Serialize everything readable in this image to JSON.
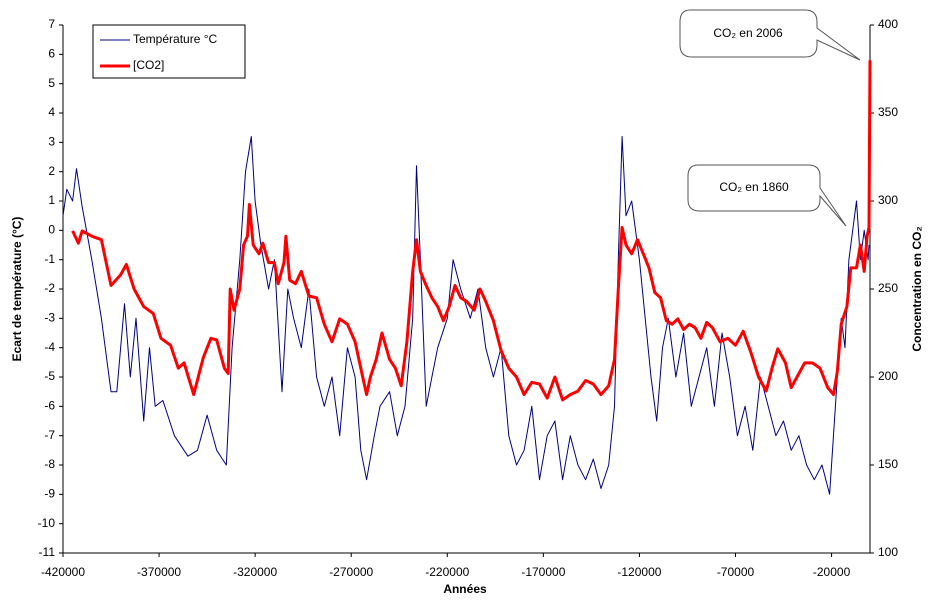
{
  "chart_data": {
    "type": "line",
    "xlabel": "Années",
    "ylabel": "Ecart de température (°C)",
    "y2label": "Concentration en CO₂",
    "xlim": [
      -420000,
      0
    ],
    "xticks": [
      -420000,
      -370000,
      -320000,
      -270000,
      -220000,
      -170000,
      -120000,
      -70000,
      -20000
    ],
    "ylim": [
      -11,
      7
    ],
    "yticks": [
      -11,
      -10,
      -9,
      -8,
      -7,
      -6,
      -5,
      -4,
      -3,
      -2,
      -1,
      0,
      1,
      2,
      3,
      4,
      5,
      6,
      7
    ],
    "y2lim": [
      100,
      400
    ],
    "y2ticks": [
      100,
      150,
      200,
      250,
      300,
      350,
      400
    ],
    "legend": "top-left",
    "annotations": [
      "CO₂ en 2006",
      "CO₂ en 1860"
    ],
    "series": [
      {
        "name": "Température °C",
        "color": "#000080",
        "x": [
          -420000,
          -418000,
          -415000,
          -413000,
          -410000,
          -405000,
          -400000,
          -395000,
          -392000,
          -388000,
          -385000,
          -382000,
          -378000,
          -375000,
          -372000,
          -368000,
          -362000,
          -355000,
          -350000,
          -345000,
          -340000,
          -335000,
          -332000,
          -328000,
          -325000,
          -322000,
          -320000,
          -317000,
          -313000,
          -310000,
          -306000,
          -303000,
          -300000,
          -296000,
          -292000,
          -288000,
          -284000,
          -280000,
          -276000,
          -272000,
          -268000,
          -265000,
          -262000,
          -258000,
          -255000,
          -250000,
          -246000,
          -242000,
          -238000,
          -236000,
          -234000,
          -231000,
          -228000,
          -225000,
          -220000,
          -217000,
          -213000,
          -208000,
          -204000,
          -200000,
          -196000,
          -192000,
          -188000,
          -184000,
          -180000,
          -176000,
          -172000,
          -168000,
          -164000,
          -160000,
          -156000,
          -152000,
          -148000,
          -144000,
          -140000,
          -136000,
          -133000,
          -131000,
          -129000,
          -127000,
          -124000,
          -120000,
          -117000,
          -114000,
          -111000,
          -108000,
          -105000,
          -101000,
          -97000,
          -93000,
          -89000,
          -85000,
          -81000,
          -77000,
          -73000,
          -69000,
          -65000,
          -61000,
          -57000,
          -53000,
          -49000,
          -45000,
          -41000,
          -37000,
          -33000,
          -29000,
          -25000,
          -21000,
          -18000,
          -15000,
          -13000,
          -11000,
          -9000,
          -7000,
          -5000,
          -3000,
          -1000,
          -500
        ],
        "values": [
          0.5,
          1.4,
          1.0,
          2.1,
          0.8,
          -1,
          -3,
          -5.5,
          -5.5,
          -2.5,
          -5,
          -3,
          -6.5,
          -4,
          -6,
          -5.8,
          -7,
          -7.7,
          -7.5,
          -6.3,
          -7.5,
          -8,
          -4,
          -1,
          2,
          3.2,
          1,
          -0.5,
          -2,
          -1,
          -5.5,
          -2,
          -3,
          -4,
          -2,
          -5,
          -6,
          -5,
          -7,
          -4,
          -5,
          -7.5,
          -8.5,
          -7,
          -6,
          -5.5,
          -7,
          -6,
          -3,
          2.2,
          -1,
          -6,
          -5,
          -4,
          -3,
          -1,
          -2,
          -3,
          -2,
          -4,
          -5,
          -4,
          -7,
          -8,
          -7.5,
          -6,
          -8.5,
          -7,
          -6.5,
          -8.5,
          -7,
          -8,
          -8.5,
          -7.8,
          -8.8,
          -8,
          -6,
          -1,
          3.2,
          0.5,
          1,
          -1,
          -3,
          -5,
          -6.5,
          -4,
          -3,
          -5,
          -3.5,
          -6,
          -5,
          -4,
          -6,
          -3.5,
          -5,
          -7,
          -6,
          -7.5,
          -5,
          -6,
          -7,
          -6.5,
          -7.5,
          -7,
          -8,
          -8.5,
          -8,
          -9,
          -6,
          -3,
          -4,
          -1,
          0,
          1,
          -1,
          0,
          -1,
          -0.5
        ]
      },
      {
        "name": "[CO2]",
        "color": "#ff0000",
        "axis": "y2",
        "x": [
          -415000,
          -412000,
          -410000,
          -405000,
          -400000,
          -395000,
          -390000,
          -387000,
          -383000,
          -378000,
          -373000,
          -369000,
          -364000,
          -360000,
          -357000,
          -352000,
          -347000,
          -343000,
          -340000,
          -336000,
          -334000,
          -333000,
          -331000,
          -328000,
          -326000,
          -324000,
          -323000,
          -321000,
          -318000,
          -316000,
          -313000,
          -310000,
          -308000,
          -305000,
          -304000,
          -302000,
          -299000,
          -296000,
          -292000,
          -288000,
          -284000,
          -280000,
          -276000,
          -272000,
          -268000,
          -264000,
          -262000,
          -260000,
          -257000,
          -254000,
          -250000,
          -247000,
          -244000,
          -241000,
          -238000,
          -236000,
          -234000,
          -231000,
          -228000,
          -225000,
          -222000,
          -219000,
          -216000,
          -213000,
          -210000,
          -206000,
          -203000,
          -200000,
          -196000,
          -192000,
          -188000,
          -184000,
          -180000,
          -176000,
          -172000,
          -168000,
          -164000,
          -160000,
          -156000,
          -152000,
          -148000,
          -144000,
          -140000,
          -136000,
          -133000,
          -131000,
          -129000,
          -127000,
          -124000,
          -121000,
          -118000,
          -115000,
          -112000,
          -109000,
          -106000,
          -103000,
          -100000,
          -97000,
          -94000,
          -91000,
          -88000,
          -85000,
          -82000,
          -78000,
          -74000,
          -70000,
          -66000,
          -62000,
          -58000,
          -54000,
          -51000,
          -48000,
          -44000,
          -41000,
          -38000,
          -34000,
          -30000,
          -26000,
          -22000,
          -19000,
          -17000,
          -15000,
          -12000,
          -10000,
          -7000,
          -5000,
          -3000,
          -1500,
          -500,
          0
        ],
        "values": [
          283,
          276,
          283,
          280,
          278,
          252,
          258,
          264,
          250,
          240,
          236,
          222,
          218,
          205,
          208,
          190,
          211,
          222,
          221,
          205,
          202,
          250,
          238,
          250,
          275,
          280,
          298,
          275,
          270,
          276,
          265,
          265,
          253,
          265,
          280,
          255,
          253,
          260,
          246,
          245,
          230,
          220,
          233,
          230,
          220,
          200,
          190,
          200,
          210,
          225,
          210,
          205,
          195,
          220,
          260,
          278,
          260,
          252,
          245,
          240,
          232,
          240,
          252,
          245,
          243,
          238,
          250,
          243,
          232,
          215,
          205,
          200,
          190,
          197,
          196,
          188,
          200,
          187,
          190,
          192,
          198,
          196,
          190,
          195,
          210,
          250,
          285,
          275,
          270,
          278,
          270,
          262,
          248,
          245,
          232,
          230,
          233,
          227,
          230,
          228,
          222,
          231,
          228,
          220,
          222,
          218,
          226,
          214,
          200,
          192,
          205,
          216,
          208,
          194,
          200,
          208,
          208,
          205,
          194,
          190,
          203,
          230,
          240,
          262,
          262,
          275,
          260,
          280,
          285,
          380
        ]
      }
    ]
  }
}
